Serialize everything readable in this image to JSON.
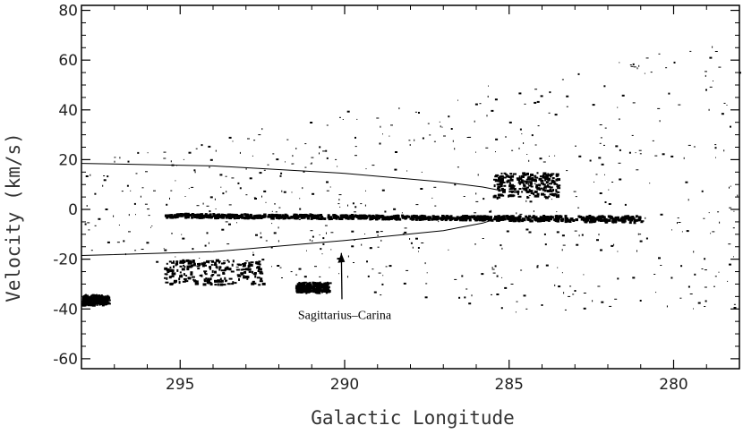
{
  "chart_data": {
    "type": "scatter",
    "title": "",
    "xlabel": "Galactic Longitude",
    "ylabel": "Velocity (km/s)",
    "xlim": [
      298,
      278
    ],
    "ylim": [
      -64,
      82
    ],
    "x_ticks": [
      295,
      290,
      285,
      280
    ],
    "y_ticks": [
      80,
      60,
      40,
      20,
      0,
      -20,
      -40,
      -60
    ],
    "grid": false,
    "x_reversed": true,
    "curves": [
      {
        "name": "upper envelope",
        "x": [
          298,
          294,
          290,
          287,
          285.8,
          285.2
        ],
        "y": [
          18.5,
          17.5,
          14.5,
          11,
          9,
          7.5
        ]
      },
      {
        "name": "lower envelope",
        "x": [
          298,
          294,
          290,
          287,
          285.8,
          285.2
        ],
        "y": [
          -18.5,
          -17,
          -12.5,
          -8.5,
          -5.5,
          -3
        ]
      }
    ],
    "features": [
      {
        "name": "Sagittarius-Carina main band",
        "x": [
          295.5,
          281
        ],
        "v": [
          -2,
          -3.5
        ]
      },
      {
        "name": "Sagittarius-Carina arm near 285",
        "x": [
          285.5,
          283.5
        ],
        "v": [
          5,
          15
        ]
      },
      {
        "name": "low-velocity cloud",
        "x": [
          295.5,
          292.5
        ],
        "v": [
          -30,
          -20
        ]
      },
      {
        "name": "low-velocity cloud",
        "x": [
          291.5,
          290.5
        ],
        "v": [
          -33,
          -29
        ]
      },
      {
        "name": "low-velocity edge",
        "x": [
          298,
          297.2
        ],
        "v": [
          -38,
          -34
        ]
      }
    ],
    "annotations": [
      {
        "text": "Sagittarius–Carina",
        "x": 290,
        "y": -44
      }
    ]
  }
}
